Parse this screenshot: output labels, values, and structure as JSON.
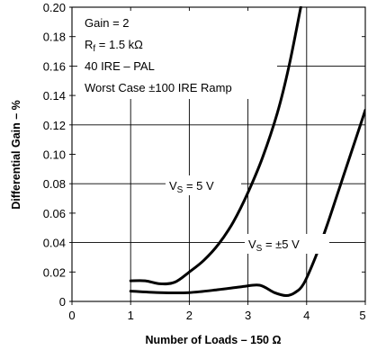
{
  "chart_data": {
    "type": "line",
    "title": "",
    "xlabel": "Number of Loads – 150 Ω",
    "ylabel": "Differential Gain – %",
    "xlim": [
      0,
      5
    ],
    "ylim": [
      0,
      0.2
    ],
    "x_ticks": [
      "0",
      "1",
      "2",
      "3",
      "4",
      "5"
    ],
    "y_ticks": [
      "0",
      "0.02",
      "0.04",
      "0.06",
      "0.08",
      "0.10",
      "0.12",
      "0.14",
      "0.16",
      "0.18",
      "0.20"
    ],
    "grid": true,
    "conditions": [
      "Gain = 2",
      "Worst Case ±100 IRE Ramp"
    ],
    "rf_label": {
      "symbol": "R",
      "sub": "f",
      "rest": " = 1.5 kΩ"
    },
    "ire_label": "40 IRE – PAL",
    "series": [
      {
        "name": "VS = 5 V",
        "label_main": "V",
        "label_sub": "S",
        "label_rest": " = 5 V",
        "x": [
          1.0,
          1.25,
          1.5,
          1.75,
          2.0,
          2.25,
          2.5,
          2.75,
          3.0,
          3.25,
          3.5,
          3.7,
          3.9
        ],
        "y": [
          0.014,
          0.014,
          0.012,
          0.013,
          0.02,
          0.028,
          0.039,
          0.054,
          0.074,
          0.098,
          0.128,
          0.16,
          0.2
        ]
      },
      {
        "name": "VS = ±5 V",
        "label_main": "V",
        "label_sub": "S",
        "label_rest": " = ±5 V",
        "x": [
          1.0,
          1.5,
          2.0,
          2.5,
          2.9,
          3.2,
          3.45,
          3.65,
          3.8,
          3.95,
          4.15,
          4.35,
          4.55,
          4.75,
          5.0
        ],
        "y": [
          0.007,
          0.006,
          0.006,
          0.008,
          0.01,
          0.011,
          0.006,
          0.004,
          0.006,
          0.012,
          0.03,
          0.052,
          0.076,
          0.1,
          0.13
        ]
      }
    ]
  }
}
